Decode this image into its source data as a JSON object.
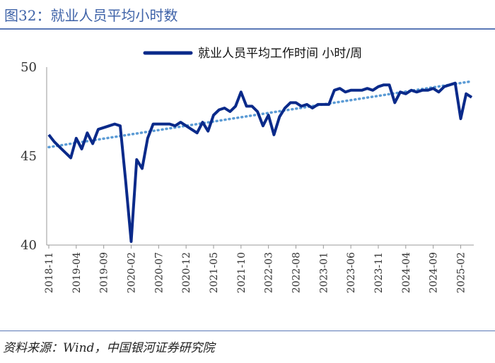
{
  "figure": {
    "title": "图32：就业人员平均小时数",
    "source": "资料来源：Wind，中国银河证券研究院"
  },
  "colors": {
    "series": "#0a2a8a",
    "trend": "#5b9bd5",
    "rule": "#5a78b6"
  },
  "chart_data": {
    "type": "line",
    "title": "",
    "xlabel": "",
    "ylabel": "",
    "ylim": [
      40,
      50
    ],
    "y_ticks": [
      40,
      45,
      50
    ],
    "grid": false,
    "legend_position": "top-center",
    "x_start": "2018-11",
    "x_ticks": [
      "2018-11",
      "2019-04",
      "2019-09",
      "2020-02",
      "2020-07",
      "2020-12",
      "2021-05",
      "2021-10",
      "2022-03",
      "2022-08",
      "2023-01",
      "2023-06",
      "2023-11",
      "2024-04",
      "2024-09",
      "2025-02"
    ],
    "series": [
      {
        "name": "就业人员平均工作时间 小时/周",
        "values": [
          46.2,
          45.8,
          45.5,
          45.2,
          44.9,
          46.0,
          45.4,
          46.3,
          45.7,
          46.5,
          46.6,
          46.7,
          46.8,
          46.7,
          43.6,
          40.2,
          44.8,
          44.3,
          46.0,
          46.8,
          46.8,
          46.8,
          46.8,
          46.7,
          46.9,
          46.7,
          46.5,
          46.3,
          46.9,
          46.4,
          47.3,
          47.6,
          47.7,
          47.5,
          47.8,
          48.6,
          47.8,
          47.8,
          47.5,
          46.7,
          47.3,
          46.2,
          47.2,
          47.7,
          48.0,
          48.0,
          47.8,
          47.9,
          47.7,
          47.9,
          47.9,
          47.9,
          48.7,
          48.8,
          48.6,
          48.7,
          48.7,
          48.7,
          48.8,
          48.7,
          48.9,
          49.0,
          49.0,
          48.0,
          48.6,
          48.5,
          48.7,
          48.6,
          48.7,
          48.7,
          48.8,
          48.6,
          48.9,
          49.0,
          49.1,
          47.1,
          48.5,
          48.3
        ]
      },
      {
        "name": "trend",
        "values": [
          45.5,
          49.2
        ]
      }
    ]
  }
}
